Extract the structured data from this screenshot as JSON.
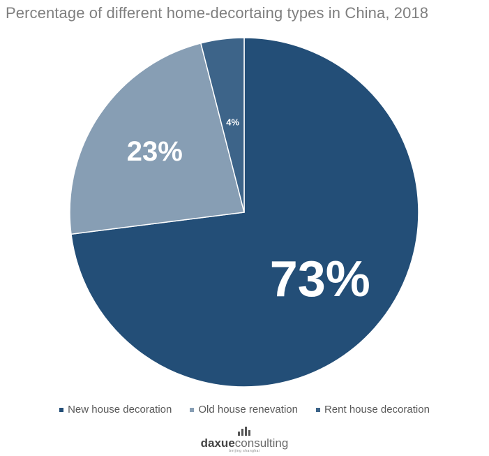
{
  "chart_data": {
    "type": "pie",
    "title": "Percentage of different home-decortaing types in China, 2018",
    "slices": [
      {
        "name": "New house decoration",
        "value": 73,
        "label": "73%",
        "color": "#234e77"
      },
      {
        "name": "Old house renevation",
        "value": 23,
        "label": "23%",
        "color": "#879eb4"
      },
      {
        "name": "Rent house decoration",
        "value": 4,
        "label": "4%",
        "color": "#3d6489"
      }
    ],
    "legend_position": "bottom"
  },
  "logo": {
    "bold": "daxue",
    "light": "consulting",
    "sub": "beijing shanghai"
  }
}
